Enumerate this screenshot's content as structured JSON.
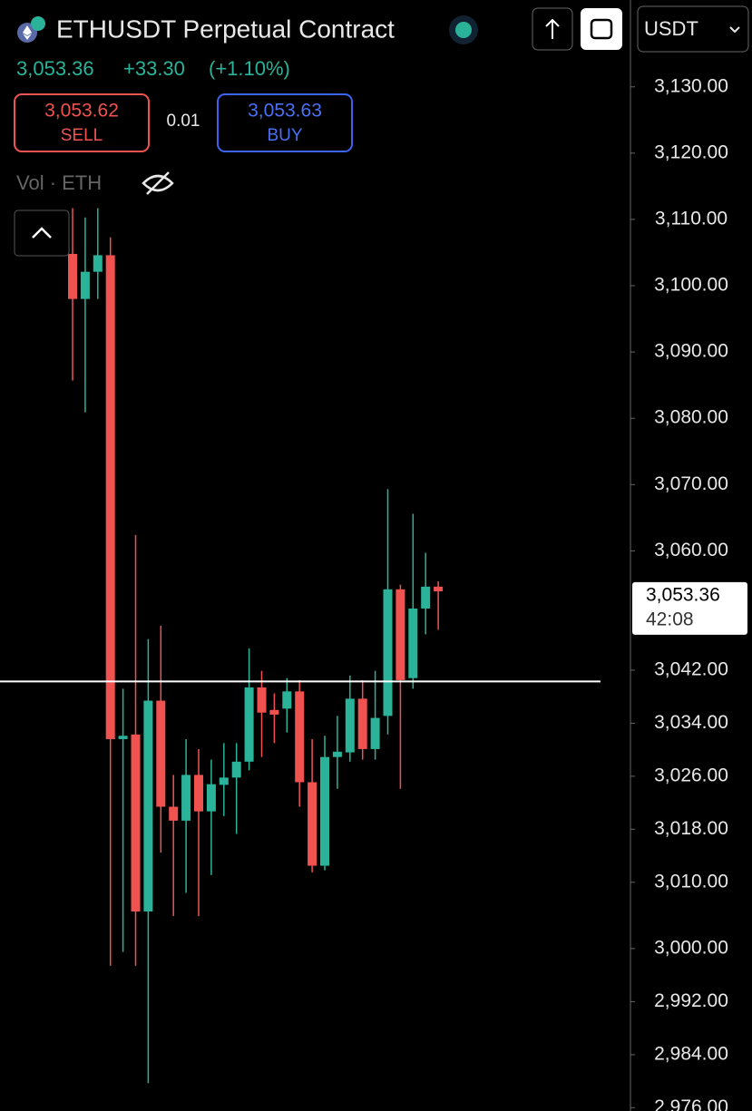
{
  "header": {
    "symbol": "ETHUSDT Perpetual Contract",
    "last": "3,053.36",
    "change": "+33.30",
    "change_pct": "(+1.10%)",
    "sell_price": "3,053.62",
    "sell_label": "SELL",
    "spread": "0.01",
    "buy_price": "3,053.63",
    "buy_label": "BUY",
    "volume_label": "Vol · ETH",
    "currency": "USDT"
  },
  "chart_data": {
    "type": "candlestick",
    "up_color": "#2bb39a",
    "down_color": "#f0524f",
    "open": [
      3104.8,
      3098.0,
      3102.1,
      3104.6,
      3031.6,
      3032.3,
      3005.6,
      3037.4,
      3021.4,
      3019.3,
      3026.2,
      3020.7,
      3024.7,
      3025.8,
      3028.2,
      3039.4,
      3036.0,
      3036.2,
      3038.8,
      3025.1,
      3012.5,
      3028.9,
      3029.6,
      3037.7,
      3030.1,
      3035.1,
      3054.2,
      3040.8,
      3051.3,
      3054.6
    ],
    "high": [
      3111.7,
      3110.3,
      3111.7,
      3107.3,
      3039.2,
      3062.4,
      3046.7,
      3048.7,
      3026.2,
      3031.6,
      3030.1,
      3028.5,
      3031.0,
      3031.0,
      3045.3,
      3041.9,
      3038.5,
      3040.8,
      3040.5,
      3031.6,
      3032.1,
      3035.1,
      3041.2,
      3040.5,
      3041.9,
      3069.3,
      3054.9,
      3065.6,
      3059.7,
      3055.4
    ],
    "low": [
      3085.7,
      3080.9,
      3098.0,
      2997.4,
      2999.5,
      2997.4,
      2979.7,
      3014.5,
      3004.9,
      3008.4,
      3004.9,
      3011.1,
      3020.0,
      3017.3,
      3026.9,
      3028.9,
      3031.0,
      3032.6,
      3021.4,
      3011.5,
      3011.8,
      3024.1,
      3028.2,
      3028.5,
      3028.5,
      3032.3,
      3024.1,
      3039.2,
      3047.4,
      3048.1
    ],
    "close": [
      3098.0,
      3102.1,
      3104.6,
      3031.6,
      3032.1,
      3005.6,
      3037.4,
      3021.4,
      3019.3,
      3026.2,
      3020.7,
      3024.8,
      3025.8,
      3028.2,
      3039.4,
      3035.6,
      3035.3,
      3038.8,
      3025.1,
      3012.5,
      3028.9,
      3029.7,
      3037.7,
      3030.1,
      3034.8,
      3054.2,
      3040.5,
      3051.3,
      3054.6,
      3053.9
    ],
    "position_line": 3040.3,
    "last_price": {
      "value": 3053.36,
      "label": "3,053.36"
    },
    "countdown": "42:08",
    "ylim": [
      2975.5,
      3143.1
    ],
    "yticks": [
      {
        "value": 3130,
        "label": "3,130.00"
      },
      {
        "value": 3120,
        "label": "3,120.00"
      },
      {
        "value": 3110,
        "label": "3,110.00"
      },
      {
        "value": 3100,
        "label": "3,100.00"
      },
      {
        "value": 3090,
        "label": "3,090.00"
      },
      {
        "value": 3080,
        "label": "3,080.00"
      },
      {
        "value": 3070,
        "label": "3,070.00"
      },
      {
        "value": 3060,
        "label": "3,060.00"
      },
      {
        "value": 3042,
        "label": "3,042.00"
      },
      {
        "value": 3034,
        "label": "3,034.00"
      },
      {
        "value": 3026,
        "label": "3,026.00"
      },
      {
        "value": 3018,
        "label": "3,018.00"
      },
      {
        "value": 3010,
        "label": "3,010.00"
      },
      {
        "value": 3000,
        "label": "3,000.00"
      },
      {
        "value": 2992,
        "label": "2,992.00"
      },
      {
        "value": 2984,
        "label": "2,984.00"
      },
      {
        "value": 2976,
        "label": "2,976.00"
      }
    ]
  }
}
